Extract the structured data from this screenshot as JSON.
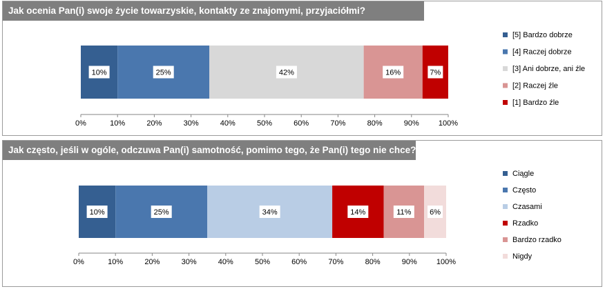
{
  "chart_data": [
    {
      "type": "bar",
      "orientation": "horizontal-stacked-100",
      "title": "Jak ocenia Pan(i) swoje życie towarzyskie, kontakty ze znajomymi, przyjaciółmi?",
      "xlim": [
        0,
        100
      ],
      "ticks": [
        "0%",
        "10%",
        "20%",
        "30%",
        "40%",
        "50%",
        "60%",
        "70%",
        "80%",
        "90%",
        "100%"
      ],
      "legend_position": "right",
      "series": [
        {
          "name": "[5] Bardzo dobrze",
          "value": 10,
          "label": "10%",
          "color": "#355f91"
        },
        {
          "name": "[4] Raczej dobrze",
          "value": 25,
          "label": "25%",
          "color": "#4a77ae"
        },
        {
          "name": "[3] Ani dobrze, ani źle",
          "value": 42,
          "label": "42%",
          "color": "#d8d8d8"
        },
        {
          "name": "[2] Raczej źle",
          "value": 16,
          "label": "16%",
          "color": "#d99594"
        },
        {
          "name": "[1] Bardzo źle",
          "value": 7,
          "label": "7%",
          "color": "#c00000"
        }
      ]
    },
    {
      "type": "bar",
      "orientation": "horizontal-stacked-100",
      "title": "Jak często, jeśli w ogóle, odczuwa Pan(i) samotność, pomimo tego, że Pan(i) tego nie chce?",
      "xlim": [
        0,
        100
      ],
      "ticks": [
        "0%",
        "10%",
        "20%",
        "30%",
        "40%",
        "50%",
        "60%",
        "70%",
        "80%",
        "90%",
        "100%"
      ],
      "legend_position": "right",
      "series": [
        {
          "name": "Ciągle",
          "value": 10,
          "label": "10%",
          "color": "#355f91"
        },
        {
          "name": "Często",
          "value": 25,
          "label": "25%",
          "color": "#4a77ae"
        },
        {
          "name": "Czasami",
          "value": 34,
          "label": "34%",
          "color": "#b9cde5"
        },
        {
          "name": "Rzadko",
          "value": 14,
          "label": "14%",
          "color": "#c00000"
        },
        {
          "name": "Bardzo rzadko",
          "value": 11,
          "label": "11%",
          "color": "#d99594"
        },
        {
          "name": "Nigdy",
          "value": 6,
          "label": "6%",
          "color": "#f2dcdb"
        }
      ]
    }
  ]
}
